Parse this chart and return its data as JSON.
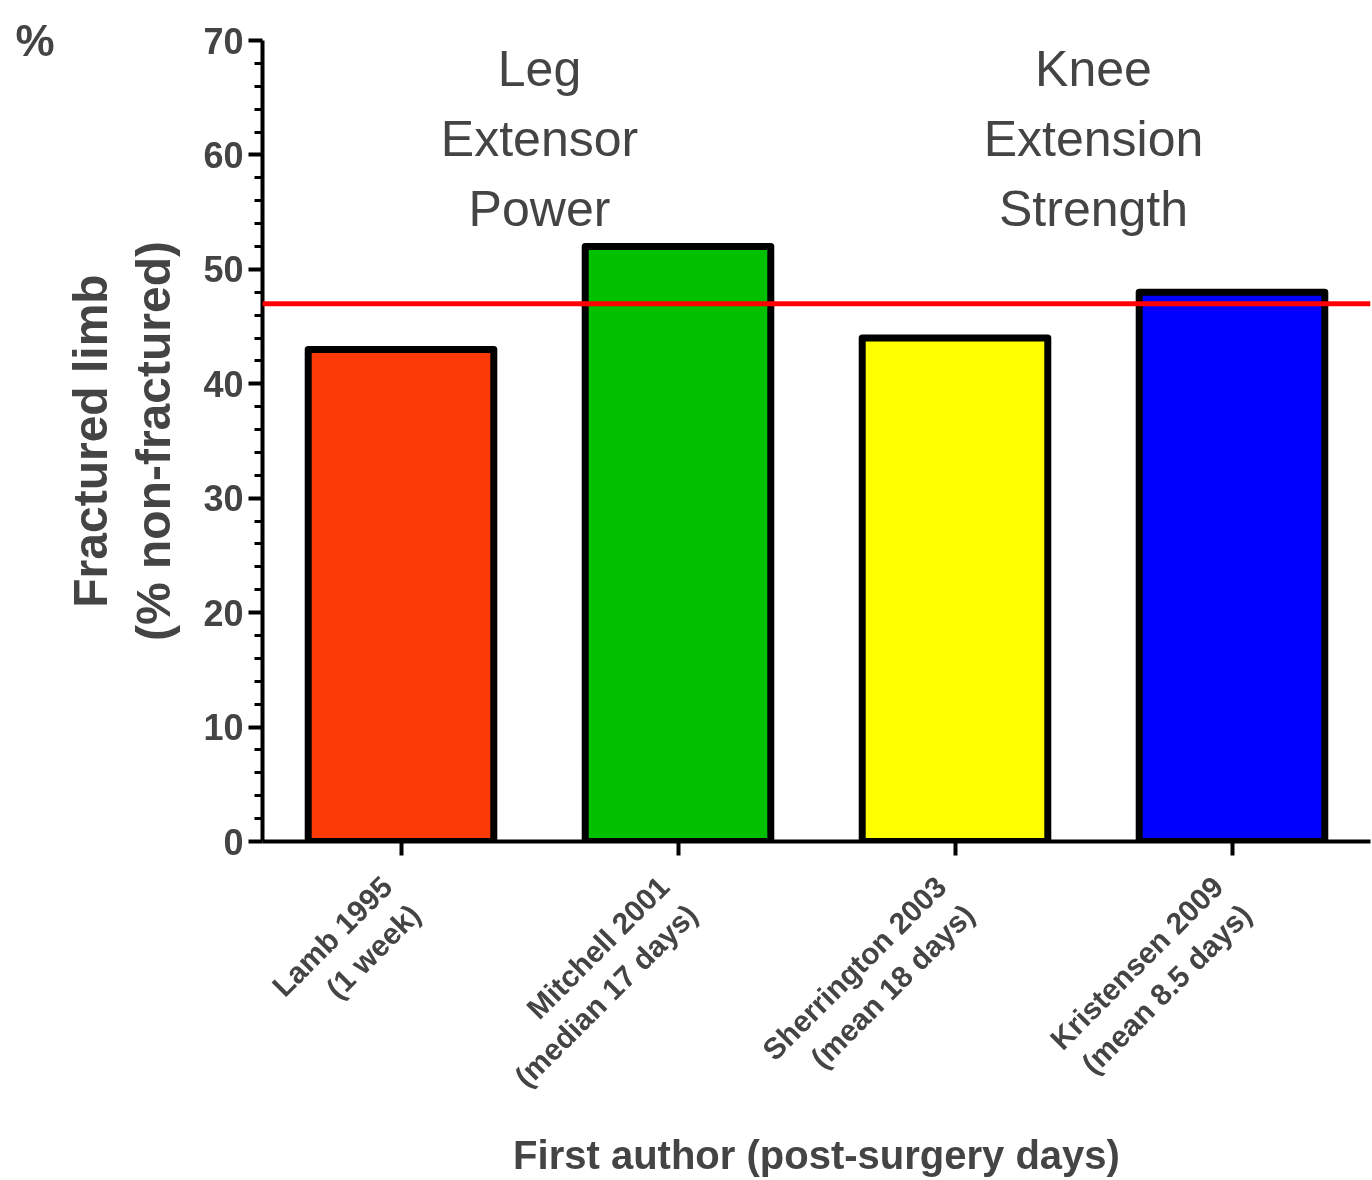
{
  "chart_data": {
    "type": "bar",
    "categories": [
      "Lamb 1995\n(1 week)",
      "Mitchell 2001\n(median 17 days)",
      "Sherrington 2003\n(mean 18 days)",
      "Kristensen 2009\n(mean 8.5 days)"
    ],
    "values": [
      43,
      52,
      44,
      48
    ],
    "colors": [
      "#fc3a06",
      "#00c000",
      "#ffff00",
      "#0000ff"
    ],
    "ylim": [
      0,
      70
    ],
    "yticks": [
      0,
      10,
      20,
      30,
      40,
      50,
      60,
      70
    ],
    "ylabel": "Fractured limb\n(% non-fractured)",
    "xlabel": "First author (post-surgery days)",
    "annotations": [
      "Leg\nExtensor\nPower",
      "Knee\nExtension\nStrength",
      "%"
    ],
    "ref_lines": [
      {
        "axis": "y",
        "value": 47,
        "color": "#ff0000"
      }
    ],
    "grid": false
  }
}
